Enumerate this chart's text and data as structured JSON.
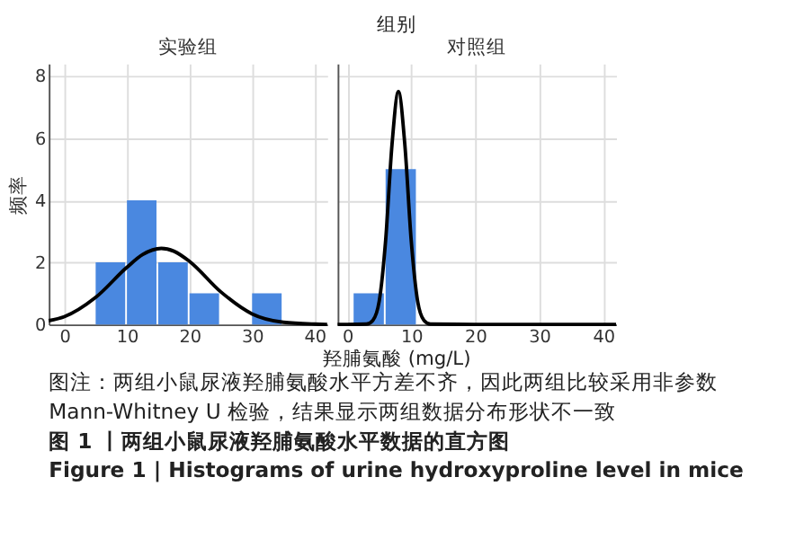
{
  "chart_data": [
    {
      "type": "histogram",
      "title": "实验组",
      "ylabel": "频率",
      "xlabel": "羟脯氨酸 (mg/L)",
      "annotations": [
        "组别",
        "图注：两组小鼠尿液羟脯氨酸水平方差不齐，因此两组比较采用非参数",
        "Mann-Whitney U 检验，结果显示两组数据分布形状不一致",
        "图 1 丨两组小鼠尿液羟脯氨酸水平数据的直方图",
        "Figure 1  |  Histograms of urine hydroxyproline level in mice"
      ],
      "series": [
        {
          "color": "#4a88e0",
          "bins": [
            5,
            10,
            15,
            20,
            25,
            30,
            35
          ],
          "values": [
            2,
            4,
            2,
            1,
            0,
            1
          ]
        },
        {
          "type": "line",
          "color": "#000000",
          "x": [
            -2.5,
            0,
            5,
            10,
            12.5,
            15.5,
            17.5,
            20,
            25,
            30,
            35,
            40,
            42
          ],
          "values": [
            0.12,
            0.25,
            0.87,
            1.84,
            2.25,
            2.45,
            2.36,
            2.03,
            1.05,
            0.34,
            0.07,
            0.01,
            0
          ]
        }
      ],
      "xlim": [
        -2.5,
        42
      ],
      "ylim": [
        0,
        8.4
      ],
      "xticks": [
        0,
        10,
        20,
        30,
        40
      ],
      "yticks": [
        0,
        2,
        4,
        6,
        8
      ],
      "grid": true,
      "marker": "none"
    },
    {
      "type": "histogram",
      "title": "对照组",
      "series": [
        {
          "color": "#4a88e0",
          "bins": [
            1,
            6,
            11
          ],
          "values": [
            1,
            5
          ]
        },
        {
          "type": "line",
          "color": "#000000",
          "x": [
            -1.5,
            0,
            3,
            4,
            5,
            6,
            7,
            8,
            9,
            10,
            11,
            12,
            13,
            20,
            30,
            42
          ],
          "values": [
            0,
            0,
            0.01,
            0.13,
            0.75,
            2.7,
            5.8,
            7.5,
            5.8,
            2.7,
            0.75,
            0.13,
            0.01,
            0,
            0,
            0
          ]
        }
      ],
      "xlim": [
        -1.5,
        42
      ],
      "ylim": [
        0,
        8.4
      ],
      "xticks": [
        0,
        10,
        20,
        30,
        40
      ],
      "yticks": [
        0,
        2,
        4,
        6,
        8
      ],
      "grid": true,
      "marker": "none",
      "tick_labels": "x"
    }
  ]
}
